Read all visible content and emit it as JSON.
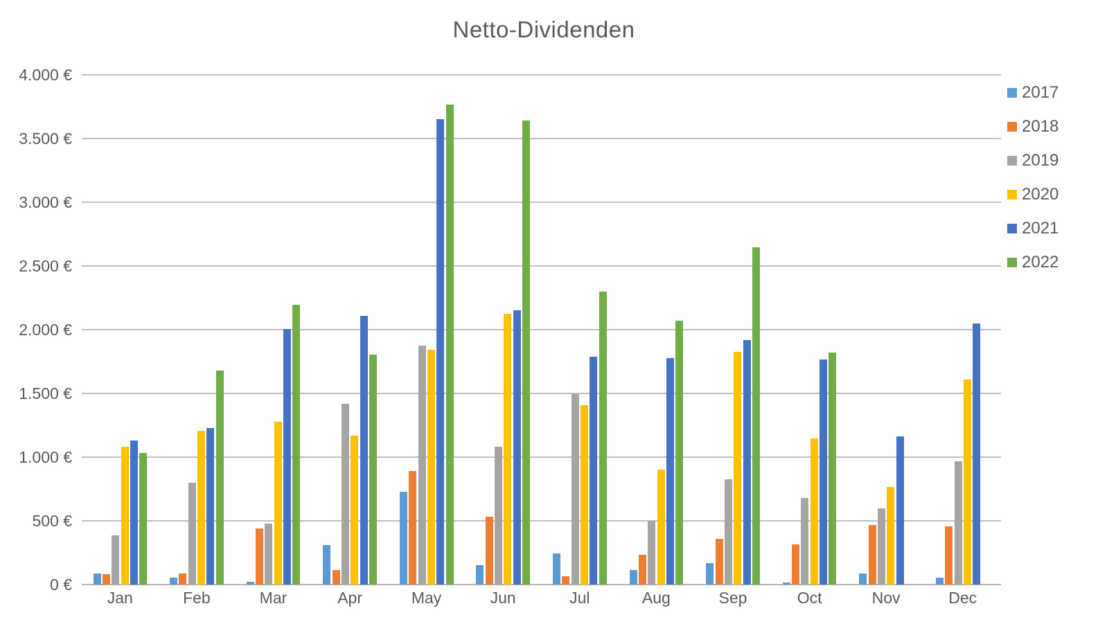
{
  "title": "Netto-Dividenden",
  "colors": {
    "text": "#595959",
    "gridline": "#BFBFBF",
    "axis_line": "#B3B3B3",
    "background": "#FFFFFF"
  },
  "chart_data": {
    "type": "bar",
    "title": "Netto-Dividenden",
    "currency": "€",
    "categories": [
      "Jan",
      "Feb",
      "Mar",
      "Apr",
      "May",
      "Jun",
      "Jul",
      "Aug",
      "Sep",
      "Oct",
      "Nov",
      "Dec"
    ],
    "series": [
      {
        "name": "2017",
        "color": "#5B9BD5",
        "values": [
          85,
          55,
          20,
          310,
          730,
          155,
          245,
          115,
          170,
          15,
          85,
          55
        ]
      },
      {
        "name": "2018",
        "color": "#ED7D31",
        "values": [
          80,
          85,
          440,
          115,
          890,
          535,
          65,
          235,
          360,
          315,
          470,
          455
        ]
      },
      {
        "name": "2019",
        "color": "#A5A5A5",
        "values": [
          385,
          800,
          480,
          1420,
          1875,
          1080,
          1495,
          500,
          825,
          680,
          600,
          965
        ]
      },
      {
        "name": "2020",
        "color": "#FFC000",
        "values": [
          1080,
          1205,
          1280,
          1170,
          1845,
          2125,
          1410,
          900,
          1825,
          1145,
          765,
          1610
        ]
      },
      {
        "name": "2021",
        "color": "#4472C4",
        "values": [
          1130,
          1230,
          2005,
          2110,
          3650,
          2155,
          1790,
          1775,
          1920,
          1765,
          1165,
          2050
        ]
      },
      {
        "name": "2022",
        "color": "#70AD47",
        "values": [
          1035,
          1680,
          2195,
          1805,
          3765,
          3640,
          2300,
          2070,
          2645,
          1820,
          null,
          null
        ]
      }
    ],
    "ylim": [
      0,
      4000
    ],
    "ytick_step": 500,
    "ytick_labels": [
      "0 €",
      "500 €",
      "1.000 €",
      "1.500 €",
      "2.000 €",
      "2.500 €",
      "3.000 €",
      "3.500 €",
      "4.000 €"
    ],
    "ylabel": "",
    "xlabel": "",
    "grid": "horizontal",
    "legend_position": "right",
    "legend_entries": [
      "2017",
      "2018",
      "2019",
      "2020",
      "2021",
      "2022"
    ]
  }
}
